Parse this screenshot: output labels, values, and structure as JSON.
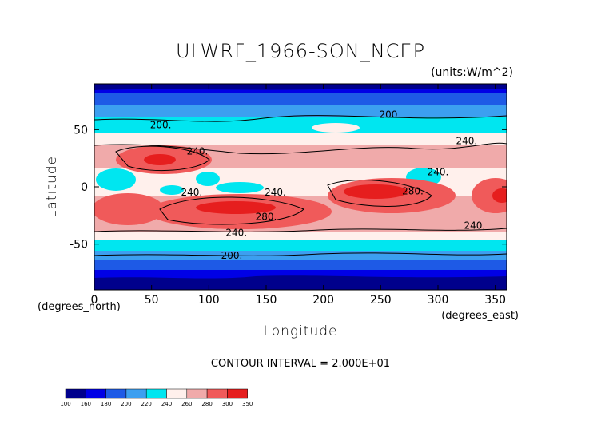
{
  "chart_data": {
    "type": "heatmap",
    "title": "ULWRF_1966-SON_NCEP",
    "units": "(units:W/m^2)",
    "xlabel": "Longitude",
    "ylabel": "Latitude",
    "x_unit_label": "(degrees_east)",
    "y_unit_label": "(degrees_north)",
    "footer": "CONTOUR INTERVAL = 2.000E+01",
    "xlim": [
      0,
      360
    ],
    "ylim": [
      -90,
      90
    ],
    "xticks": [
      "0",
      "50",
      "100",
      "150",
      "200",
      "250",
      "300",
      "350"
    ],
    "xtick_values": [
      0,
      50,
      100,
      150,
      200,
      250,
      300,
      350
    ],
    "yticks": [
      "50",
      "0",
      "-50"
    ],
    "ytick_values": [
      50,
      0,
      -50
    ],
    "contour_labels": [
      {
        "text": "200.",
        "lon": 58,
        "lat": 54
      },
      {
        "text": "200.",
        "lon": 258,
        "lat": 63
      },
      {
        "text": "240.",
        "lon": 90,
        "lat": 31
      },
      {
        "text": "240.",
        "lon": 325,
        "lat": 40
      },
      {
        "text": "240.",
        "lon": 300,
        "lat": 13
      },
      {
        "text": "240.",
        "lon": 85,
        "lat": -5
      },
      {
        "text": "240.",
        "lon": 158,
        "lat": -5
      },
      {
        "text": "280.",
        "lon": 150,
        "lat": -26
      },
      {
        "text": "280.",
        "lon": 278,
        "lat": -4
      },
      {
        "text": "240.",
        "lon": 124,
        "lat": -40
      },
      {
        "text": "240.",
        "lon": 332,
        "lat": -34
      },
      {
        "text": "200.",
        "lon": 120,
        "lat": -60
      }
    ],
    "colorbar": {
      "levels": [
        "100",
        "160",
        "180",
        "200",
        "220",
        "240",
        "260",
        "280",
        "300",
        "350"
      ],
      "colors": [
        "#00008c",
        "#0000e6",
        "#1e5ae6",
        "#3c9ff0",
        "#00e6f0",
        "#fff0ec",
        "#f0aaaa",
        "#f05a5a",
        "#e61e1e"
      ]
    },
    "zonal_profile": [
      {
        "lat": 90,
        "value": 170
      },
      {
        "lat": 80,
        "value": 180
      },
      {
        "lat": 70,
        "value": 195
      },
      {
        "lat": 60,
        "value": 210
      },
      {
        "lat": 50,
        "value": 225
      },
      {
        "lat": 40,
        "value": 245
      },
      {
        "lat": 30,
        "value": 265
      },
      {
        "lat": 20,
        "value": 260
      },
      {
        "lat": 10,
        "value": 240
      },
      {
        "lat": 0,
        "value": 245
      },
      {
        "lat": -10,
        "value": 265
      },
      {
        "lat": -20,
        "value": 280
      },
      {
        "lat": -30,
        "value": 260
      },
      {
        "lat": -40,
        "value": 235
      },
      {
        "lat": -50,
        "value": 215
      },
      {
        "lat": -60,
        "value": 200
      },
      {
        "lat": -70,
        "value": 185
      },
      {
        "lat": -80,
        "value": 170
      },
      {
        "lat": -90,
        "value": 160
      }
    ]
  }
}
